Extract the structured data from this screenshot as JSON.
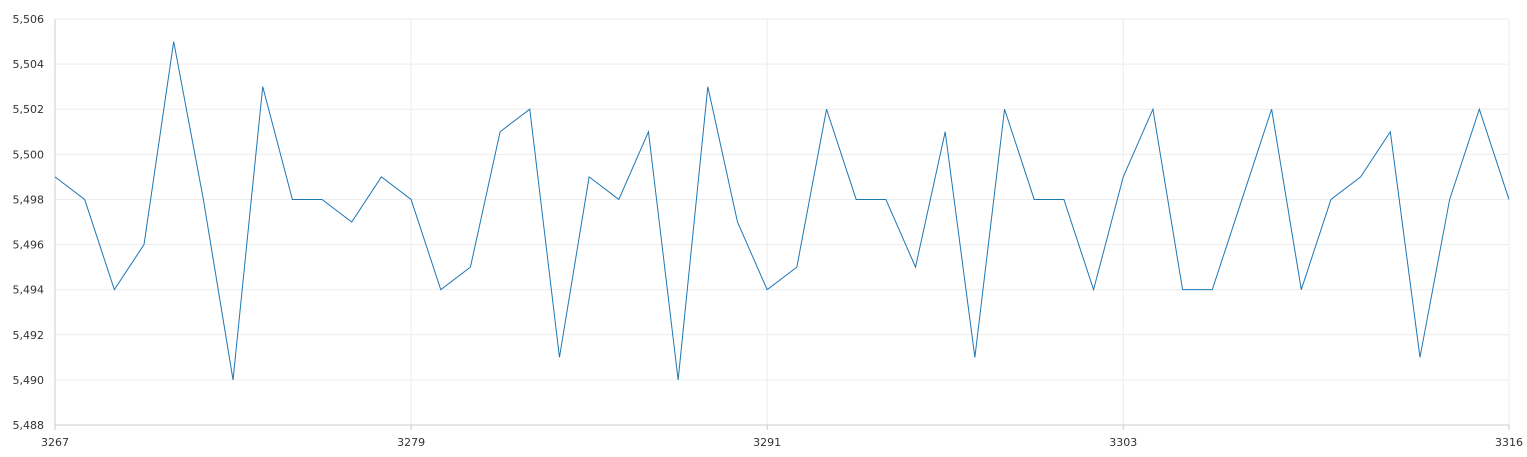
{
  "chart_data": {
    "type": "line",
    "title": "",
    "xlabel": "",
    "ylabel": "",
    "xlim": [
      3267,
      3316
    ],
    "ylim": [
      5488,
      5506
    ],
    "x_ticks": [
      3267,
      3279,
      3291,
      3303,
      3316
    ],
    "x_tick_labels": [
      "3267",
      "3279",
      "3291",
      "3303",
      "3316"
    ],
    "y_ticks": [
      5488,
      5490,
      5492,
      5494,
      5496,
      5498,
      5500,
      5502,
      5504,
      5506
    ],
    "y_tick_labels": [
      "5,488",
      "5,490",
      "5,492",
      "5,494",
      "5,496",
      "5,498",
      "5,500",
      "5,502",
      "5,504",
      "5,506"
    ],
    "grid": true,
    "legend": "none",
    "series": [
      {
        "color": "#1f77b4",
        "x": [
          3267,
          3268,
          3269,
          3270,
          3271,
          3272,
          3273,
          3274,
          3275,
          3276,
          3277,
          3278,
          3279,
          3280,
          3281,
          3282,
          3283,
          3284,
          3285,
          3286,
          3287,
          3288,
          3289,
          3290,
          3291,
          3292,
          3293,
          3294,
          3295,
          3296,
          3297,
          3298,
          3299,
          3300,
          3301,
          3302,
          3303,
          3304,
          3305,
          3306,
          3307,
          3308,
          3309,
          3310,
          3311,
          3312,
          3313,
          3314,
          3315,
          3316
        ],
        "values": [
          5499,
          5498,
          5494,
          5496,
          5505,
          5498,
          5490,
          5503,
          5498,
          5498,
          5497,
          5499,
          5498,
          5494,
          5495,
          5501,
          5502,
          5491,
          5499,
          5498,
          5501,
          5490,
          5503,
          5497,
          5494,
          5495,
          5502,
          5498,
          5498,
          5495,
          5501,
          5491,
          5502,
          5498,
          5498,
          5494,
          5499,
          5502,
          5494,
          5494,
          5498,
          5502,
          5494,
          5498,
          5499,
          5501,
          5491,
          5498,
          5502,
          5498
        ]
      }
    ]
  }
}
